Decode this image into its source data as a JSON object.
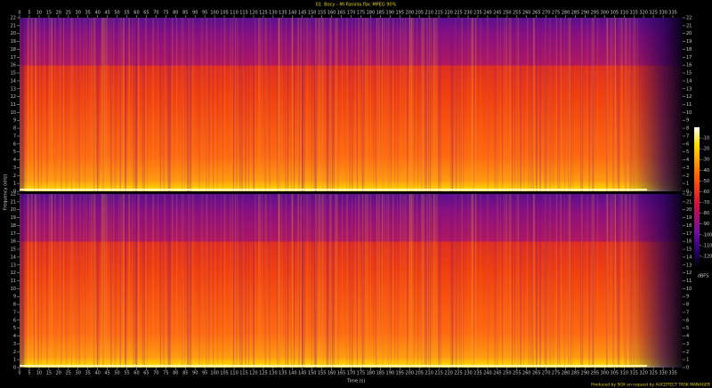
{
  "chart_data": {
    "type": "spectrogram",
    "title": "01. Bocy - Mi Familia.flac MPEG 90%",
    "xlabel": "Time (s)",
    "ylabel": "Frequency (kHz)",
    "colorbar_label": "dBFS",
    "footer": "Produced by SOX on request by AUCDTECT TASK MANAGER",
    "xlim": [
      0,
      340
    ],
    "xticks": [
      0,
      5,
      10,
      15,
      20,
      25,
      30,
      35,
      40,
      45,
      50,
      55,
      60,
      65,
      70,
      75,
      80,
      85,
      90,
      95,
      100,
      105,
      110,
      115,
      120,
      125,
      130,
      135,
      140,
      145,
      150,
      155,
      160,
      165,
      170,
      175,
      180,
      185,
      190,
      195,
      200,
      205,
      210,
      215,
      220,
      225,
      230,
      235,
      240,
      245,
      250,
      255,
      260,
      265,
      270,
      275,
      280,
      285,
      290,
      295,
      300,
      305,
      310,
      315,
      320,
      325,
      330,
      335
    ],
    "ylim": [
      0,
      22
    ],
    "yticks": [
      0,
      1,
      2,
      3,
      4,
      5,
      6,
      7,
      8,
      9,
      10,
      11,
      12,
      13,
      14,
      15,
      16,
      17,
      18,
      19,
      20,
      21,
      22
    ],
    "clim": [
      -130,
      0
    ],
    "cticks": [
      -10,
      -20,
      -30,
      -40,
      -50,
      -60,
      -70,
      -80,
      -90,
      -100,
      -110,
      -120
    ]
  }
}
